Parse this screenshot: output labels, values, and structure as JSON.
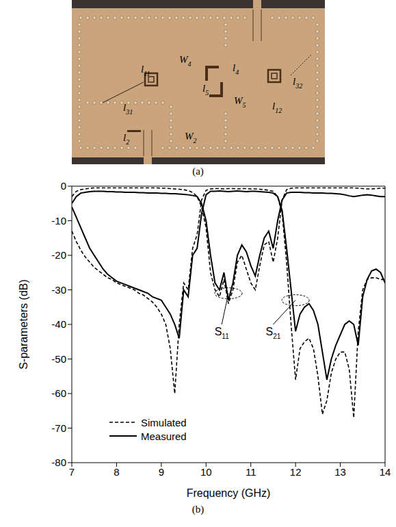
{
  "photo": {
    "caption": "(a)",
    "labels": [
      {
        "text": "W",
        "sub": "4"
      },
      {
        "text": "l",
        "sub": "4"
      },
      {
        "text": "l",
        "sub": "11"
      },
      {
        "text": "l",
        "sub": "5"
      },
      {
        "text": "W",
        "sub": "5"
      },
      {
        "text": "l",
        "sub": "32"
      },
      {
        "text": "l",
        "sub": "31"
      },
      {
        "text": "l",
        "sub": "12"
      },
      {
        "text": "l",
        "sub": "2"
      },
      {
        "text": "W",
        "sub": "2"
      }
    ]
  },
  "chart_data": {
    "type": "line",
    "caption": "(b)",
    "x_label": "Frequency (GHz)",
    "y_label": "S-parameters (dB)",
    "xlim": [
      7,
      14
    ],
    "xticks": [
      7,
      8,
      9,
      10,
      11,
      12,
      13,
      14
    ],
    "ylim": [
      -80,
      0
    ],
    "yticks": [
      -80,
      -70,
      -60,
      -50,
      -40,
      -30,
      -20,
      -10,
      0
    ],
    "grid": false,
    "legend": "lower left",
    "x": [
      7,
      7.1,
      7.2,
      7.3,
      7.4,
      7.5,
      7.6,
      7.7,
      7.8,
      7.9,
      8,
      8.1,
      8.2,
      8.3,
      8.4,
      8.5,
      8.6,
      8.7,
      8.8,
      8.9,
      9,
      9.1,
      9.2,
      9.3,
      9.4,
      9.5,
      9.6,
      9.7,
      9.8,
      9.9,
      10,
      10.1,
      10.2,
      10.3,
      10.4,
      10.5,
      10.6,
      10.7,
      10.8,
      10.9,
      11,
      11.1,
      11.2,
      11.3,
      11.4,
      11.5,
      11.6,
      11.7,
      11.8,
      11.9,
      12,
      12.1,
      12.2,
      12.3,
      12.4,
      12.5,
      12.6,
      12.7,
      12.8,
      12.9,
      13,
      13.1,
      13.2,
      13.3,
      13.4,
      13.5,
      13.6,
      13.7,
      13.8,
      13.9,
      14
    ],
    "series": [
      {
        "name": "Simulated",
        "color": "#000000",
        "line_style": "dashed",
        "curves": {
          "S11": [
            -3,
            -1.5,
            -1,
            -0.8,
            -0.6,
            -0.5,
            -0.5,
            -0.5,
            -0.5,
            -0.5,
            -0.5,
            -0.5,
            -0.5,
            -0.5,
            -0.5,
            -0.5,
            -0.5,
            -0.5,
            -0.5,
            -0.5,
            -0.6,
            -0.6,
            -0.7,
            -0.8,
            -0.9,
            -1,
            -1.3,
            -1.8,
            -3,
            -6,
            -12,
            -25,
            -30,
            -32,
            -27,
            -34,
            -30,
            -22,
            -20,
            -24,
            -28,
            -30,
            -23,
            -17,
            -16,
            -22,
            -15,
            -4,
            -1,
            -0.6,
            -0.5,
            -0.5,
            -0.5,
            -0.5,
            -0.5,
            -0.5,
            -0.5,
            -0.5,
            -0.5,
            -0.5,
            -0.5,
            -0.5,
            -0.5,
            -0.5,
            -0.6,
            -0.7,
            -0.8,
            -0.8,
            -0.7,
            -0.6,
            -0.6
          ],
          "S21": [
            -13,
            -16,
            -18.5,
            -20.5,
            -22,
            -23.5,
            -24.5,
            -25.5,
            -26.5,
            -27,
            -28,
            -28.5,
            -29,
            -29.5,
            -30,
            -31,
            -31.5,
            -32.5,
            -33.5,
            -35,
            -37,
            -40,
            -47,
            -60,
            -40,
            -28,
            -30,
            -18,
            -14,
            -4,
            -1.2,
            -0.8,
            -0.7,
            -0.7,
            -0.8,
            -0.7,
            -0.7,
            -0.8,
            -0.7,
            -0.7,
            -0.8,
            -0.8,
            -0.9,
            -1,
            -1.2,
            -1.5,
            -3,
            -8,
            -22,
            -40,
            -56,
            -47,
            -45,
            -44,
            -47,
            -55,
            -66,
            -62,
            -54,
            -50,
            -48,
            -48,
            -53,
            -67,
            -42,
            -30,
            -27,
            -26.5,
            -26.5,
            -27,
            -27
          ]
        }
      },
      {
        "name": "Measured",
        "color": "#000000",
        "line_style": "solid",
        "curves": {
          "S11": [
            -5,
            -3,
            -2,
            -1.8,
            -1.6,
            -1.5,
            -1.5,
            -1.5,
            -1.6,
            -1.6,
            -1.7,
            -1.7,
            -1.8,
            -1.8,
            -1.8,
            -1.9,
            -1.9,
            -2,
            -2,
            -2,
            -2.1,
            -2.1,
            -2.2,
            -2.2,
            -2.3,
            -2.4,
            -2.5,
            -2.7,
            -3,
            -5,
            -10,
            -20,
            -28,
            -30,
            -25,
            -33,
            -28,
            -20,
            -17,
            -19,
            -23,
            -26,
            -20,
            -15,
            -13,
            -18,
            -10,
            -4,
            -2,
            -1.8,
            -1.8,
            -1.8,
            -1.9,
            -1.9,
            -2,
            -2,
            -2,
            -2.1,
            -2.1,
            -2.2,
            -2.3,
            -2.5,
            -2.8,
            -3,
            -2.8,
            -2.6,
            -2.5,
            -2.6,
            -2.8,
            -3,
            -3
          ],
          "S21": [
            -6,
            -9,
            -12,
            -15,
            -18,
            -20,
            -22,
            -24,
            -25.5,
            -26.5,
            -27.5,
            -28,
            -28.5,
            -29,
            -29.5,
            -30,
            -30.5,
            -31,
            -32,
            -32.5,
            -33,
            -35,
            -37,
            -40,
            -44,
            -30,
            -32,
            -20,
            -18,
            -8,
            -2.5,
            -1.5,
            -1.5,
            -1.4,
            -1.5,
            -1.6,
            -1.5,
            -1.4,
            -1.5,
            -1.6,
            -1.5,
            -1.5,
            -1.6,
            -1.7,
            -1.8,
            -2,
            -3,
            -7,
            -18,
            -30,
            -42,
            -37,
            -35,
            -34,
            -36,
            -40,
            -48,
            -56,
            -50,
            -46,
            -43,
            -40,
            -39,
            -40,
            -46,
            -32,
            -27,
            -24.5,
            -24,
            -25,
            -28
          ]
        }
      }
    ],
    "annotations": [
      {
        "text": "S",
        "sub": "11",
        "x": 10.5,
        "y": -31,
        "label_x": 10.35,
        "label_y": -40
      },
      {
        "text": "S",
        "sub": "21",
        "x": 12,
        "y": -33,
        "label_x": 11.5,
        "label_y": -40
      }
    ]
  }
}
